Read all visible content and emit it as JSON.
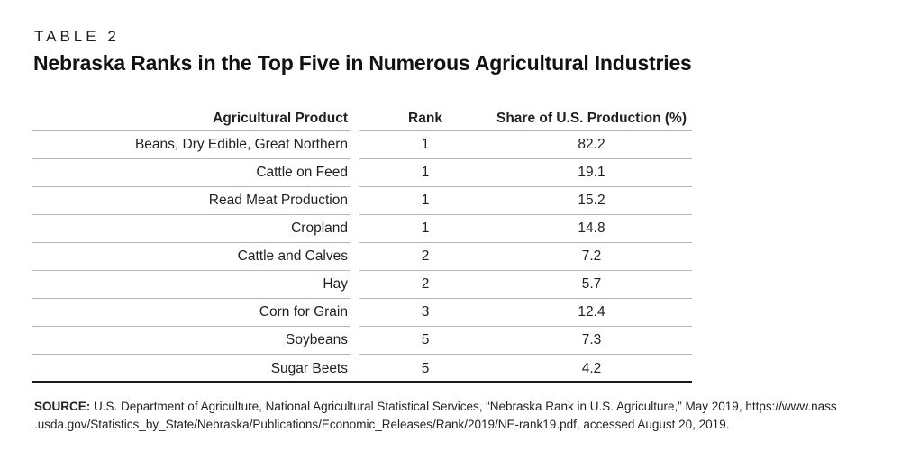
{
  "table_label": "TABLE 2",
  "title": "Nebraska Ranks in the Top Five in Numerous Agricultural Industries",
  "columns": [
    "Agricultural Product",
    "Rank",
    "Share of U.S. Production (%)"
  ],
  "rows": [
    {
      "product": "Beans, Dry Edible, Great Northern",
      "rank": "1",
      "share": "82.2"
    },
    {
      "product": "Cattle on Feed",
      "rank": "1",
      "share": "19.1"
    },
    {
      "product": "Read Meat Production",
      "rank": "1",
      "share": "15.2"
    },
    {
      "product": "Cropland",
      "rank": "1",
      "share": "14.8"
    },
    {
      "product": "Cattle and Calves",
      "rank": "2",
      "share": "7.2"
    },
    {
      "product": "Hay",
      "rank": "2",
      "share": "5.7"
    },
    {
      "product": "Corn for Grain",
      "rank": "3",
      "share": "12.4"
    },
    {
      "product": "Soybeans",
      "rank": "5",
      "share": "7.3"
    },
    {
      "product": "Sugar Beets",
      "rank": "5",
      "share": "4.2"
    }
  ],
  "source": {
    "label": "SOURCE:",
    "line1": " U.S. Department of Agriculture, National Agricultural Statistical Services, “Nebraska Rank in U.S. Agriculture,” May 2019, https://www.nass",
    "line2": ".usda.gov/Statistics_by_State/Nebraska/Publications/Economic_Releases/Rank/2019/NE-rank19.pdf, accessed August 20, 2019."
  },
  "colors": {
    "text": "#231f20",
    "light_rule": "#b5b5b5",
    "heavy_rule": "#1a1a1a",
    "background": "#ffffff"
  }
}
